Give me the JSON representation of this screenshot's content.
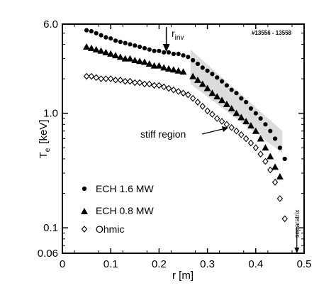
{
  "chart_data": {
    "type": "scatter",
    "xlabel": "r [m]",
    "ylabel_main": "T",
    "ylabel_sub": "e",
    "ylabel_unit": "[keV]",
    "xlim": [
      0,
      0.5
    ],
    "ylim": [
      0.06,
      6.0
    ],
    "yscale": "log",
    "grid": false,
    "legend_position": "bottom-left",
    "x_ticks": [
      {
        "value": 0,
        "label": "0"
      },
      {
        "value": 0.1,
        "label": "0.1"
      },
      {
        "value": 0.2,
        "label": "0.2"
      },
      {
        "value": 0.3,
        "label": "0.3"
      },
      {
        "value": 0.4,
        "label": "0.4"
      },
      {
        "value": 0.5,
        "label": "0.5"
      }
    ],
    "y_ticks": [
      {
        "value": 6.0,
        "label": "6.0"
      },
      {
        "value": 1.0,
        "label": "1.0"
      },
      {
        "value": 0.1,
        "label": "0.1"
      },
      {
        "value": 0.06,
        "label": "0.06"
      }
    ],
    "annotations": {
      "shot": "#13556 - 13558",
      "rinv_main": "r",
      "rinv_sub": "inv",
      "rinv_x": 0.215,
      "stiff": "stiff region",
      "separatrix": "separatrix",
      "separatrix_x": 0.485
    },
    "stiff_region": {
      "r_start": 0.265,
      "r_end": 0.455,
      "upper_start": 3.6,
      "upper_end": 0.7,
      "lower_start": 1.8,
      "lower_end": 0.45
    },
    "series": [
      {
        "name": "ECH 1.6 MW",
        "marker": "circle",
        "x": [
          0.05,
          0.06,
          0.07,
          0.08,
          0.09,
          0.1,
          0.11,
          0.12,
          0.13,
          0.14,
          0.15,
          0.16,
          0.17,
          0.18,
          0.19,
          0.2,
          0.21,
          0.22,
          0.23,
          0.24,
          0.25,
          0.26,
          0.27,
          0.28,
          0.29,
          0.3,
          0.31,
          0.32,
          0.33,
          0.34,
          0.35,
          0.36,
          0.37,
          0.38,
          0.39,
          0.4,
          0.41,
          0.42,
          0.43,
          0.44,
          0.45,
          0.46
        ],
        "values": [
          5.3,
          5.2,
          5.0,
          4.8,
          4.6,
          4.5,
          4.3,
          4.2,
          4.1,
          4.0,
          3.9,
          3.8,
          3.7,
          3.6,
          3.5,
          3.5,
          3.4,
          3.4,
          3.3,
          3.3,
          3.2,
          3.1,
          2.9,
          2.7,
          2.5,
          2.35,
          2.2,
          2.05,
          1.9,
          1.75,
          1.6,
          1.5,
          1.35,
          1.25,
          1.1,
          1.0,
          0.9,
          0.8,
          0.7,
          0.6,
          0.5,
          0.4
        ]
      },
      {
        "name": "ECH 0.8 MW",
        "marker": "triangle",
        "x": [
          0.05,
          0.06,
          0.07,
          0.08,
          0.09,
          0.1,
          0.11,
          0.12,
          0.13,
          0.14,
          0.15,
          0.16,
          0.17,
          0.18,
          0.19,
          0.2,
          0.21,
          0.22,
          0.23,
          0.24,
          0.25,
          0.27,
          0.28,
          0.29,
          0.3,
          0.31,
          0.32,
          0.33,
          0.34,
          0.35,
          0.36,
          0.37,
          0.38,
          0.39,
          0.4,
          0.41,
          0.42,
          0.43,
          0.44,
          0.45
        ],
        "values": [
          3.8,
          3.7,
          3.6,
          3.5,
          3.4,
          3.3,
          3.2,
          3.1,
          3.0,
          3.0,
          2.9,
          2.85,
          2.8,
          2.7,
          2.6,
          2.6,
          2.5,
          2.45,
          2.4,
          2.35,
          2.3,
          2.1,
          1.95,
          1.8,
          1.65,
          1.5,
          1.4,
          1.3,
          1.2,
          1.1,
          1.0,
          0.92,
          0.85,
          0.78,
          0.7,
          0.6,
          0.5,
          0.42,
          0.34,
          0.28
        ]
      },
      {
        "name": "Ohmic",
        "marker": "diamond",
        "x": [
          0.05,
          0.06,
          0.07,
          0.08,
          0.09,
          0.1,
          0.11,
          0.12,
          0.13,
          0.14,
          0.15,
          0.16,
          0.17,
          0.18,
          0.19,
          0.2,
          0.21,
          0.22,
          0.23,
          0.24,
          0.25,
          0.26,
          0.27,
          0.28,
          0.29,
          0.3,
          0.31,
          0.32,
          0.33,
          0.34,
          0.35,
          0.36,
          0.37,
          0.38,
          0.39,
          0.4,
          0.41,
          0.42,
          0.43,
          0.44,
          0.45,
          0.46
        ],
        "values": [
          2.1,
          2.1,
          2.05,
          2.0,
          2.0,
          2.0,
          1.95,
          1.95,
          1.9,
          1.9,
          1.85,
          1.85,
          1.8,
          1.8,
          1.75,
          1.75,
          1.7,
          1.65,
          1.6,
          1.55,
          1.5,
          1.45,
          1.35,
          1.25,
          1.15,
          1.05,
          0.98,
          0.9,
          0.85,
          0.8,
          0.75,
          0.7,
          0.65,
          0.6,
          0.55,
          0.5,
          0.44,
          0.38,
          0.32,
          0.25,
          0.18,
          0.12
        ]
      }
    ]
  }
}
